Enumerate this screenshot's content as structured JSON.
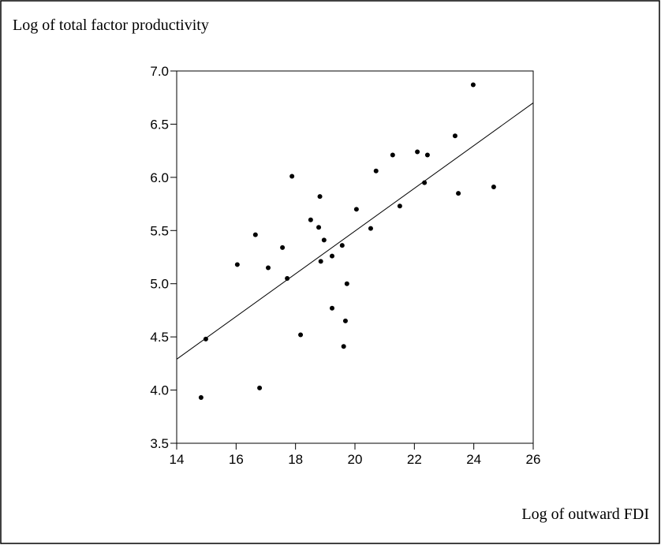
{
  "chart_data": {
    "type": "scatter",
    "y_label": "Log of total factor productivity",
    "x_label": "Log of outward FDI",
    "x": [
      14.82,
      14.98,
      16.04,
      16.65,
      16.79,
      17.08,
      17.56,
      17.72,
      17.88,
      18.17,
      18.51,
      18.78,
      18.82,
      18.85,
      18.96,
      19.23,
      19.23,
      19.57,
      19.62,
      19.68,
      19.73,
      20.05,
      20.53,
      20.71,
      21.27,
      21.51,
      22.1,
      22.34,
      22.44,
      23.37,
      23.48,
      23.98,
      24.67
    ],
    "y": [
      3.93,
      4.48,
      5.18,
      5.46,
      4.02,
      5.15,
      5.34,
      5.05,
      6.01,
      4.52,
      5.6,
      5.53,
      5.82,
      5.21,
      5.41,
      4.77,
      5.26,
      5.36,
      4.41,
      4.65,
      5.0,
      5.7,
      5.52,
      6.06,
      6.21,
      5.73,
      6.24,
      5.95,
      6.21,
      6.39,
      5.85,
      6.87,
      5.91
    ],
    "color": "#000000",
    "fit_line": {
      "x": [
        14,
        26
      ],
      "y": [
        4.29,
        6.7
      ]
    },
    "xlim": [
      14,
      26
    ],
    "xticks": [
      14,
      16,
      18,
      20,
      22,
      24,
      26
    ],
    "ylim": [
      3.5,
      7.0
    ],
    "yticks": [
      3.5,
      {
        "value": 4.0,
        "label": "4.0"
      },
      4.5,
      {
        "value": 5.0,
        "label": "5.0"
      },
      5.5,
      {
        "value": 6.0,
        "label": "6.0"
      },
      6.5,
      {
        "value": 7.0,
        "label": "7.0"
      }
    ]
  }
}
